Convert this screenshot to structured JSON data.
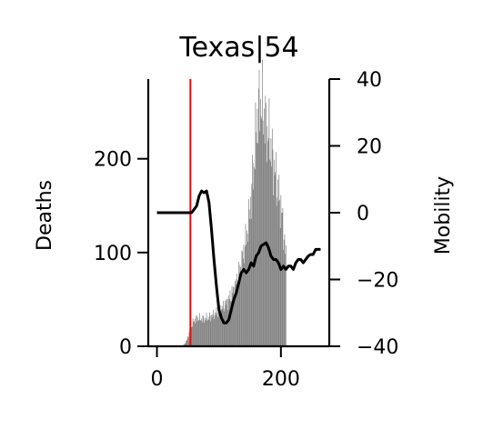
{
  "chart_data": {
    "type": "bar",
    "title": "Texas|54",
    "xlabel": "",
    "ylabel": "Deaths",
    "y2label": "Mobility",
    "xlim": [
      -14,
      278
    ],
    "ylim": [
      0,
      285
    ],
    "y2lim": [
      -40,
      40
    ],
    "x_ticks": [
      0,
      200
    ],
    "y_ticks": [
      0,
      100,
      200
    ],
    "y2_ticks": [
      40,
      20,
      0,
      -20,
      -40
    ],
    "y2_tick_labels": [
      "40",
      "20",
      "0",
      "−20",
      "−40"
    ],
    "vline_x": 54,
    "vline_color": "#ff0000",
    "bar_color": "#808080",
    "line_color": "#000000",
    "grid": false,
    "legend": "none",
    "deaths_profile": [
      [
        40,
        0
      ],
      [
        44,
        2
      ],
      [
        48,
        6
      ],
      [
        52,
        14
      ],
      [
        56,
        22
      ],
      [
        60,
        28
      ],
      [
        66,
        30
      ],
      [
        72,
        29
      ],
      [
        80,
        30
      ],
      [
        88,
        32
      ],
      [
        96,
        36
      ],
      [
        104,
        40
      ],
      [
        112,
        46
      ],
      [
        120,
        55
      ],
      [
        128,
        68
      ],
      [
        136,
        88
      ],
      [
        144,
        115
      ],
      [
        150,
        145
      ],
      [
        154,
        175
      ],
      [
        158,
        210
      ],
      [
        162,
        245
      ],
      [
        166,
        262
      ],
      [
        170,
        255
      ],
      [
        176,
        235
      ],
      [
        182,
        220
      ],
      [
        188,
        195
      ],
      [
        194,
        170
      ],
      [
        200,
        150
      ],
      [
        204,
        125
      ],
      [
        208,
        95
      ]
    ],
    "mobility_series": [
      [
        0,
        0
      ],
      [
        45,
        0
      ],
      [
        52,
        0
      ],
      [
        56,
        0
      ],
      [
        60,
        1
      ],
      [
        64,
        2
      ],
      [
        68,
        5
      ],
      [
        72,
        6.5
      ],
      [
        76,
        6
      ],
      [
        80,
        6.5
      ],
      [
        84,
        3
      ],
      [
        88,
        -5
      ],
      [
        92,
        -14
      ],
      [
        96,
        -22
      ],
      [
        100,
        -29
      ],
      [
        104,
        -31.5
      ],
      [
        108,
        -33
      ],
      [
        112,
        -33
      ],
      [
        116,
        -32
      ],
      [
        120,
        -29
      ],
      [
        124,
        -26
      ],
      [
        128,
        -24
      ],
      [
        132,
        -21
      ],
      [
        136,
        -18
      ],
      [
        140,
        -17
      ],
      [
        144,
        -18
      ],
      [
        148,
        -17
      ],
      [
        152,
        -15
      ],
      [
        156,
        -16
      ],
      [
        160,
        -13
      ],
      [
        164,
        -12
      ],
      [
        168,
        -10
      ],
      [
        172,
        -9.5
      ],
      [
        176,
        -9
      ],
      [
        180,
        -10.5
      ],
      [
        184,
        -13
      ],
      [
        188,
        -14
      ],
      [
        192,
        -14
      ],
      [
        196,
        -15
      ],
      [
        200,
        -17
      ],
      [
        204,
        -16
      ],
      [
        208,
        -17
      ],
      [
        212,
        -16
      ],
      [
        216,
        -16
      ],
      [
        220,
        -17
      ],
      [
        224,
        -15
      ],
      [
        228,
        -14
      ],
      [
        232,
        -14
      ],
      [
        236,
        -15
      ],
      [
        240,
        -14
      ],
      [
        244,
        -13
      ],
      [
        248,
        -12.5
      ],
      [
        252,
        -12.5
      ],
      [
        256,
        -11
      ],
      [
        260,
        -11
      ],
      [
        264,
        -11
      ]
    ]
  }
}
